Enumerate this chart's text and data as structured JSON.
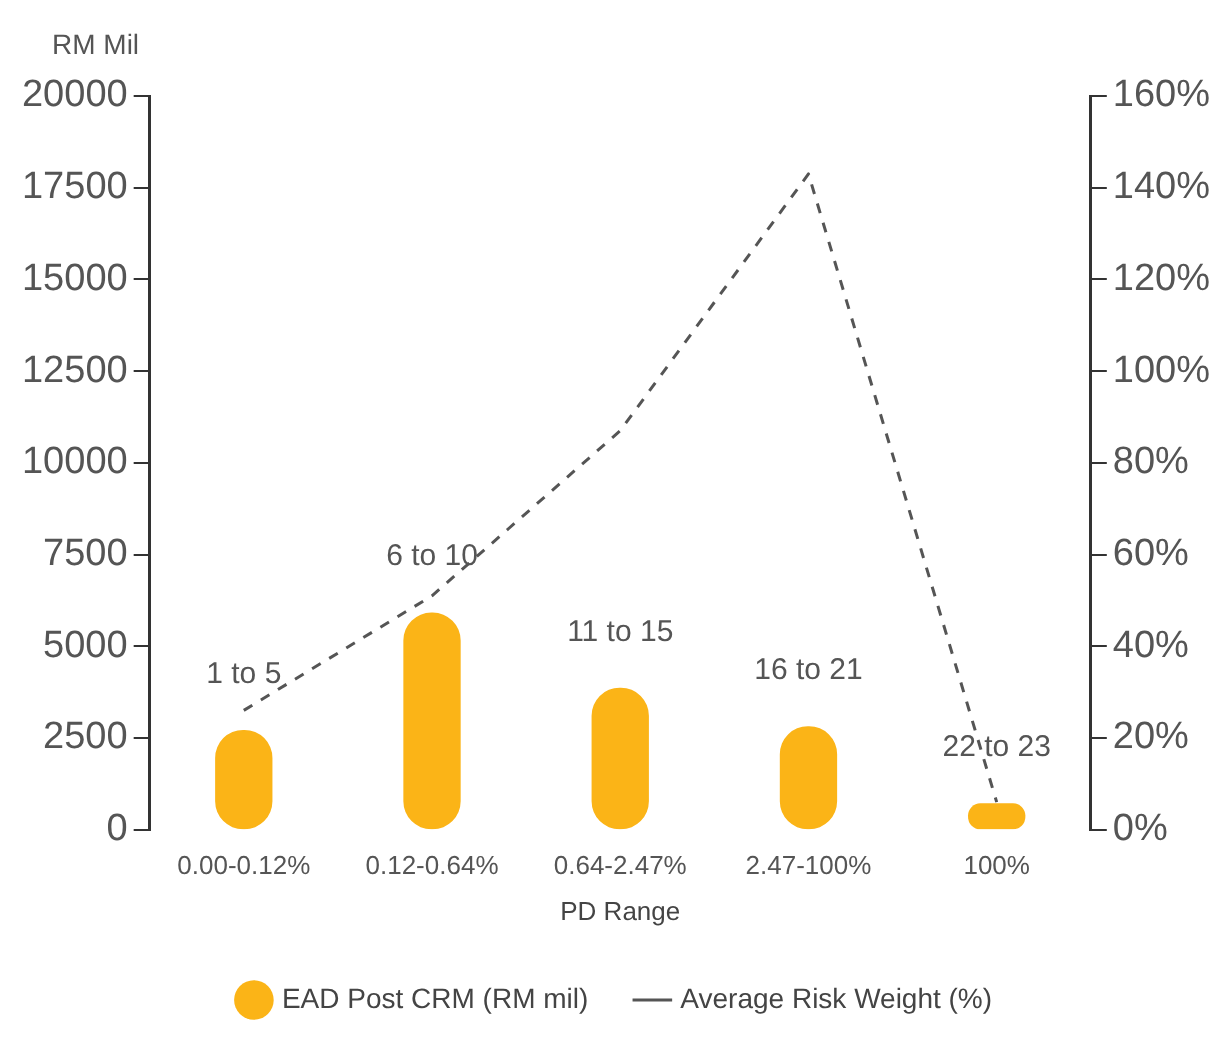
{
  "chart_data": {
    "type": "bar",
    "ylabel": "RM Mil",
    "xlabel": "PD Range",
    "categories": [
      "0.00-0.12%",
      "0.12-0.64%",
      "0.64-2.47%",
      "2.47-100%",
      "100%"
    ],
    "series": [
      {
        "name": "EAD Post CRM (RM mil)",
        "color": "#fbb417",
        "values": [
          2700,
          5900,
          3850,
          2800,
          700
        ]
      },
      {
        "name": "Average Risk Weight (%)",
        "type": "line",
        "axis": "y2",
        "color": "#555555",
        "line_style": "dashed",
        "marker": "none",
        "values": [
          26,
          51,
          87,
          143,
          6
        ]
      }
    ],
    "ylim": [
      0,
      20000
    ],
    "yticks": [
      0,
      2500,
      5000,
      7500,
      10000,
      12500,
      15000,
      17500,
      20000
    ],
    "y2lim": [
      0,
      160
    ],
    "y2ticks": [
      {
        "value": 0,
        "label": "0%"
      },
      {
        "value": 20,
        "label": "20%"
      },
      {
        "value": 40,
        "label": "40%"
      },
      {
        "value": 60,
        "label": "60%"
      },
      {
        "value": 80,
        "label": "80%"
      },
      {
        "value": 100,
        "label": "100%"
      },
      {
        "value": 120,
        "label": "120%"
      },
      {
        "value": 140,
        "label": "140%"
      },
      {
        "value": 160,
        "label": "160%"
      }
    ],
    "annotations": [
      "1 to 5",
      "6 to 10",
      "11 to 15",
      "16 to 21",
      "22 to 23"
    ],
    "grid": false,
    "legend": "bottom"
  }
}
